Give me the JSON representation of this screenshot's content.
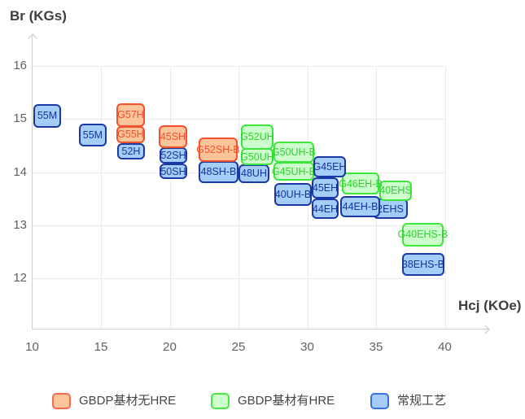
{
  "chart_data": {
    "type": "labeled_box_scatter",
    "title": "",
    "x_axis": {
      "label": "Hcj (KOe)",
      "ticks": [
        10,
        15,
        20,
        25,
        30,
        35,
        40
      ],
      "min": 10,
      "max": 43.2,
      "grid": true
    },
    "y_axis": {
      "label": "Br (KGs)",
      "ticks": [
        16,
        15,
        14,
        13,
        12
      ],
      "min": 11.0,
      "max": 16.6,
      "grid": true
    },
    "legend_position": "bottom",
    "series": [
      {
        "name": "GBDP基材无HRE",
        "color_key": "orange",
        "points": [
          {
            "label": "G57H",
            "hcj": [
              16.12,
              18.2
            ],
            "br": [
              14.85,
              15.3
            ]
          },
          {
            "label": "G55H",
            "hcj": [
              16.12,
              18.2
            ],
            "br": [
              14.54,
              14.87
            ]
          },
          {
            "label": "45SH",
            "hcj": [
              19.2,
              21.27
            ],
            "br": [
              14.45,
              14.88
            ]
          },
          {
            "label": "G52SH-B",
            "hcj": [
              22.1,
              24.94
            ],
            "br": [
              14.19,
              14.65
            ]
          }
        ]
      },
      {
        "name": "GBDP基材有HRE",
        "color_key": "green",
        "points": [
          {
            "label": "G52UH",
            "hcj": [
              25.18,
              27.54
            ],
            "br": [
              14.42,
              14.9
            ]
          },
          {
            "label": "G50UH",
            "hcj": [
              25.18,
              27.54
            ],
            "br": [
              14.13,
              14.45
            ]
          },
          {
            "label": "G50UH-B",
            "hcj": [
              27.54,
              30.5
            ],
            "br": [
              14.18,
              14.57
            ]
          },
          {
            "label": "G45UH-B",
            "hcj": [
              27.54,
              30.5
            ],
            "br": [
              13.84,
              14.19
            ]
          },
          {
            "label": "G46EH-B",
            "hcj": [
              32.51,
              35.24
            ],
            "br": [
              13.58,
              13.99
            ]
          },
          {
            "label": "40EHS",
            "hcj": [
              35.24,
              37.6
            ],
            "br": [
              13.46,
              13.84
            ]
          },
          {
            "label": "G40EHS-B",
            "hcj": [
              36.89,
              39.91
            ],
            "br": [
              12.6,
              13.04
            ]
          }
        ]
      },
      {
        "name": "常规工艺",
        "color_key": "blue",
        "points": [
          {
            "label": "55M",
            "hcj": [
              10.09,
              12.1
            ],
            "br": [
              14.84,
              15.28
            ]
          },
          {
            "label": "55M",
            "hcj": [
              13.4,
              15.41
            ],
            "br": [
              14.48,
              14.91
            ]
          },
          {
            "label": "52H",
            "hcj": [
              16.18,
              18.2
            ],
            "br": [
              14.24,
              14.54
            ]
          },
          {
            "label": "52SH",
            "hcj": [
              19.26,
              21.27
            ],
            "br": [
              14.16,
              14.47
            ]
          },
          {
            "label": "50SH",
            "hcj": [
              19.26,
              21.27
            ],
            "br": [
              13.87,
              14.16
            ]
          },
          {
            "label": "48SH-B",
            "hcj": [
              22.1,
              25.0
            ],
            "br": [
              13.79,
              14.21
            ]
          },
          {
            "label": "48UH",
            "hcj": [
              25.0,
              27.25
            ],
            "br": [
              13.79,
              14.15
            ]
          },
          {
            "label": "40UH-B",
            "hcj": [
              27.6,
              30.33
            ],
            "br": [
              13.36,
              13.79
            ]
          },
          {
            "label": "G45EH",
            "hcj": [
              30.44,
              32.81
            ],
            "br": [
              13.9,
              14.3
            ]
          },
          {
            "label": "45EH",
            "hcj": [
              30.33,
              32.28
            ],
            "br": [
              13.5,
              13.9
            ]
          },
          {
            "label": "44EH",
            "hcj": [
              30.33,
              32.28
            ],
            "br": [
              13.12,
              13.5
            ]
          },
          {
            "label": "44EH-B",
            "hcj": [
              32.4,
              35.3
            ],
            "br": [
              13.15,
              13.55
            ]
          },
          {
            "label": "2EHS",
            "hcj": [
              34.76,
              37.31
            ],
            "br": [
              13.12,
              13.5
            ]
          },
          {
            "label": "38EHS-B",
            "hcj": [
              36.89,
              39.97
            ],
            "br": [
              12.05,
              12.48
            ]
          }
        ]
      }
    ]
  },
  "legend": {
    "items": [
      {
        "label": "GBDP基材无HRE",
        "color_key": "orange"
      },
      {
        "label": "GBDP基材有HRE",
        "color_key": "green"
      },
      {
        "label": "常规工艺",
        "color_key": "blue"
      }
    ]
  },
  "colors": {
    "orange": {
      "fill": "#fcc49b",
      "border": "#f4512c",
      "text": "#f4512c",
      "legend_border": "#f66a4e"
    },
    "green": {
      "fill": "#ccffcc",
      "border": "#3ce63c",
      "text": "#2ed32e",
      "legend_border": "#44e944"
    },
    "blue": {
      "fill": "#a6ccf8",
      "border": "#1a38a6",
      "text": "#16349c",
      "legend_border": "#3a70e0"
    }
  }
}
